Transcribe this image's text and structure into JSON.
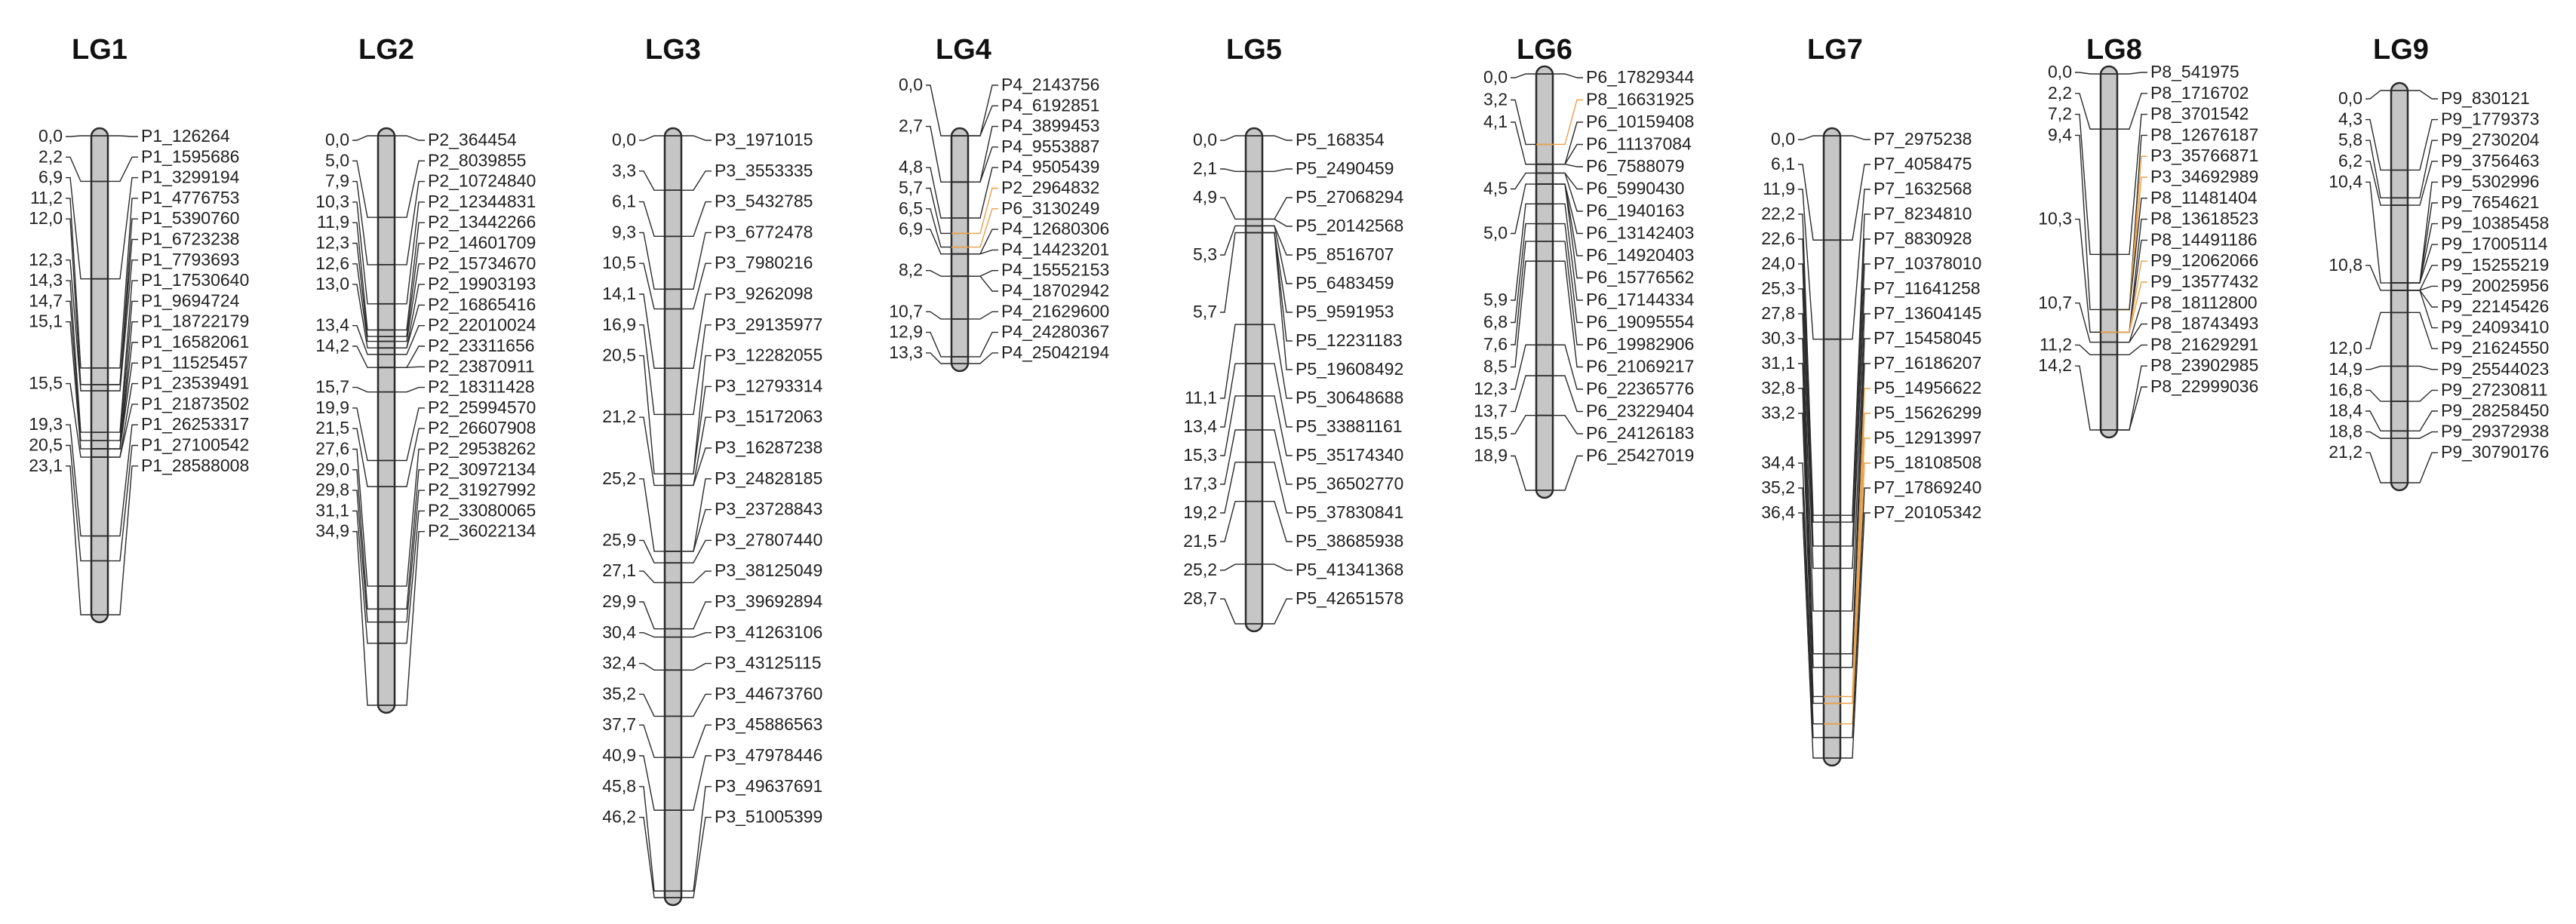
{
  "figure": {
    "colors": {
      "chromosome_fill": "#c6c6c6",
      "chromosome_stroke": "#2a2a2a",
      "text": "#222222",
      "highlight": "#e8a04a"
    }
  },
  "groups": [
    {
      "name": "LG1",
      "markers": [
        {
          "pos": "0,0",
          "label": "P1_126264"
        },
        {
          "pos": "2,2",
          "label": "P1_1595686"
        },
        {
          "pos": "6,9",
          "label": "P1_3299194"
        },
        {
          "pos": "11,2",
          "label": "P1_4776753"
        },
        {
          "pos": "12,0",
          "label": "P1_5390760"
        },
        {
          "pos": "",
          "label": "P1_6723238"
        },
        {
          "pos": "12,3",
          "label": "P1_7793693"
        },
        {
          "pos": "14,3",
          "label": "P1_17530640"
        },
        {
          "pos": "14,7",
          "label": "P1_9694724"
        },
        {
          "pos": "15,1",
          "label": "P1_18722179"
        },
        {
          "pos": "",
          "label": "P1_16582061"
        },
        {
          "pos": "",
          "label": "P1_11525457"
        },
        {
          "pos": "15,5",
          "label": "P1_23539491"
        },
        {
          "pos": "",
          "label": "P1_21873502"
        },
        {
          "pos": "19,3",
          "label": "P1_26253317"
        },
        {
          "pos": "20,5",
          "label": "P1_27100542"
        },
        {
          "pos": "23,1",
          "label": "P1_28588008"
        }
      ]
    },
    {
      "name": "LG2",
      "markers": [
        {
          "pos": "0,0",
          "label": "P2_364454"
        },
        {
          "pos": "5,0",
          "label": "P2_8039855"
        },
        {
          "pos": "7,9",
          "label": "P2_10724840"
        },
        {
          "pos": "10,3",
          "label": "P2_12344831"
        },
        {
          "pos": "11,9",
          "label": "P2_13442266"
        },
        {
          "pos": "12,3",
          "label": "P2_14601709"
        },
        {
          "pos": "12,6",
          "label": "P2_15734670"
        },
        {
          "pos": "13,0",
          "label": "P2_19903193"
        },
        {
          "pos": "",
          "label": "P2_16865416"
        },
        {
          "pos": "13,4",
          "label": "P2_22010024"
        },
        {
          "pos": "14,2",
          "label": "P2_23311656"
        },
        {
          "pos": "",
          "label": "P2_23870911"
        },
        {
          "pos": "15,7",
          "label": "P2_18311428"
        },
        {
          "pos": "19,9",
          "label": "P2_25994570"
        },
        {
          "pos": "21,5",
          "label": "P2_26607908"
        },
        {
          "pos": "27,6",
          "label": "P2_29538262"
        },
        {
          "pos": "29,0",
          "label": "P2_30972134"
        },
        {
          "pos": "29,8",
          "label": "P2_31927992"
        },
        {
          "pos": "31,1",
          "label": "P2_33080065"
        },
        {
          "pos": "34,9",
          "label": "P2_36022134"
        }
      ]
    },
    {
      "name": "LG3",
      "markers": [
        {
          "pos": "0,0",
          "label": "P3_1971015"
        },
        {
          "pos": "3,3",
          "label": "P3_3553335"
        },
        {
          "pos": "6,1",
          "label": "P3_5432785"
        },
        {
          "pos": "9,3",
          "label": "P3_6772478"
        },
        {
          "pos": "10,5",
          "label": "P3_7980216"
        },
        {
          "pos": "14,1",
          "label": "P3_9262098"
        },
        {
          "pos": "16,9",
          "label": "P3_29135977"
        },
        {
          "pos": "20,5",
          "label": "P3_12282055"
        },
        {
          "pos": "",
          "label": "P3_12793314"
        },
        {
          "pos": "21,2",
          "label": "P3_15172063"
        },
        {
          "pos": "",
          "label": "P3_16287238"
        },
        {
          "pos": "25,2",
          "label": "P3_24828185"
        },
        {
          "pos": "",
          "label": "P3_23728843"
        },
        {
          "pos": "25,9",
          "label": "P3_27807440"
        },
        {
          "pos": "27,1",
          "label": "P3_38125049"
        },
        {
          "pos": "29,9",
          "label": "P3_39692894"
        },
        {
          "pos": "30,4",
          "label": "P3_41263106"
        },
        {
          "pos": "32,4",
          "label": "P3_43125115"
        },
        {
          "pos": "35,2",
          "label": "P3_44673760"
        },
        {
          "pos": "37,7",
          "label": "P3_45886563"
        },
        {
          "pos": "40,9",
          "label": "P3_47978446"
        },
        {
          "pos": "45,8",
          "label": "P3_49637691"
        },
        {
          "pos": "46,2",
          "label": "P3_51005399"
        }
      ]
    },
    {
      "name": "LG4",
      "markers": [
        {
          "pos": "0,0",
          "label": "P4_2143756"
        },
        {
          "pos": "",
          "label": "P4_6192851"
        },
        {
          "pos": "2,7",
          "label": "P4_3899453"
        },
        {
          "pos": "",
          "label": "P4_9553887"
        },
        {
          "pos": "4,8",
          "label": "P4_9505439"
        },
        {
          "pos": "5,7",
          "label": "P2_2964832",
          "highlight": true
        },
        {
          "pos": "6,5",
          "label": "P6_3130249",
          "highlight": true
        },
        {
          "pos": "6,9",
          "label": "P4_12680306"
        },
        {
          "pos": "",
          "label": "P4_14423201"
        },
        {
          "pos": "8,2",
          "label": "P4_15552153"
        },
        {
          "pos": "",
          "label": "P4_18702942"
        },
        {
          "pos": "10,7",
          "label": "P4_21629600"
        },
        {
          "pos": "12,9",
          "label": "P4_24280367"
        },
        {
          "pos": "13,3",
          "label": "P4_25042194"
        }
      ]
    },
    {
      "name": "LG5",
      "markers": [
        {
          "pos": "0,0",
          "label": "P5_168354"
        },
        {
          "pos": "2,1",
          "label": "P5_2490459"
        },
        {
          "pos": "4,9",
          "label": "P5_27068294"
        },
        {
          "pos": "",
          "label": "P5_20142568"
        },
        {
          "pos": "5,3",
          "label": "P5_8516707"
        },
        {
          "pos": "",
          "label": "P5_6483459"
        },
        {
          "pos": "5,7",
          "label": "P5_9591953"
        },
        {
          "pos": "",
          "label": "P5_12231183"
        },
        {
          "pos": "",
          "label": "P5_19608492"
        },
        {
          "pos": "11,1",
          "label": "P5_30648688"
        },
        {
          "pos": "13,4",
          "label": "P5_33881161"
        },
        {
          "pos": "15,3",
          "label": "P5_35174340"
        },
        {
          "pos": "17,3",
          "label": "P5_36502770"
        },
        {
          "pos": "19,2",
          "label": "P5_37830841"
        },
        {
          "pos": "21,5",
          "label": "P5_38685938"
        },
        {
          "pos": "25,2",
          "label": "P5_41341368"
        },
        {
          "pos": "28,7",
          "label": "P5_42651578"
        }
      ]
    },
    {
      "name": "LG6",
      "markers": [
        {
          "pos": "0,0",
          "label": "P6_17829344"
        },
        {
          "pos": "3,2",
          "label": "P8_16631925",
          "highlight": true
        },
        {
          "pos": "4,1",
          "label": "P6_10159408"
        },
        {
          "pos": "",
          "label": "P6_11137084"
        },
        {
          "pos": "",
          "label": "P6_7588079"
        },
        {
          "pos": "4,5",
          "label": "P6_5990430"
        },
        {
          "pos": "",
          "label": "P6_1940163"
        },
        {
          "pos": "5,0",
          "label": "P6_13142403"
        },
        {
          "pos": "",
          "label": "P6_14920403"
        },
        {
          "pos": "",
          "label": "P6_15776562"
        },
        {
          "pos": "5,9",
          "label": "P6_17144334"
        },
        {
          "pos": "6,8",
          "label": "P6_19095554"
        },
        {
          "pos": "7,6",
          "label": "P6_19982906"
        },
        {
          "pos": "8,5",
          "label": "P6_21069217"
        },
        {
          "pos": "12,3",
          "label": "P6_22365776"
        },
        {
          "pos": "13,7",
          "label": "P6_23229404"
        },
        {
          "pos": "15,5",
          "label": "P6_24126183"
        },
        {
          "pos": "18,9",
          "label": "P6_25427019"
        }
      ]
    },
    {
      "name": "LG7",
      "markers": [
        {
          "pos": "0,0",
          "label": "P7_2975238"
        },
        {
          "pos": "6,1",
          "label": "P7_4058475"
        },
        {
          "pos": "11,9",
          "label": "P7_1632568"
        },
        {
          "pos": "22,2",
          "label": "P7_8234810"
        },
        {
          "pos": "22,6",
          "label": "P7_8830928"
        },
        {
          "pos": "24,0",
          "label": "P7_10378010"
        },
        {
          "pos": "25,3",
          "label": "P7_11641258"
        },
        {
          "pos": "27,8",
          "label": "P7_13604145"
        },
        {
          "pos": "30,3",
          "label": "P7_15458045"
        },
        {
          "pos": "31,1",
          "label": "P7_16186207"
        },
        {
          "pos": "32,8",
          "label": "P5_14956622",
          "highlight": true
        },
        {
          "pos": "33,2",
          "label": "P5_15626299",
          "highlight": true
        },
        {
          "pos": "",
          "label": "P5_12913997",
          "highlight": true
        },
        {
          "pos": "34,4",
          "label": "P5_18108508",
          "highlight": true
        },
        {
          "pos": "35,2",
          "label": "P7_17869240"
        },
        {
          "pos": "36,4",
          "label": "P7_20105342"
        }
      ]
    },
    {
      "name": "LG8",
      "markers": [
        {
          "pos": "0,0",
          "label": "P8_541975"
        },
        {
          "pos": "2,2",
          "label": "P8_1716702"
        },
        {
          "pos": "7,2",
          "label": "P8_3701542"
        },
        {
          "pos": "9,4",
          "label": "P8_12676187"
        },
        {
          "pos": "",
          "label": "P3_35766871",
          "highlight": true
        },
        {
          "pos": "",
          "label": "P3_34692989",
          "highlight": true
        },
        {
          "pos": "",
          "label": "P8_11481404"
        },
        {
          "pos": "10,3",
          "label": "P8_13618523"
        },
        {
          "pos": "",
          "label": "P8_14491186"
        },
        {
          "pos": "",
          "label": "P9_12062066",
          "highlight": true
        },
        {
          "pos": "",
          "label": "P9_13577432",
          "highlight": true
        },
        {
          "pos": "10,7",
          "label": "P8_18112800"
        },
        {
          "pos": "",
          "label": "P8_18743493"
        },
        {
          "pos": "11,2",
          "label": "P8_21629291"
        },
        {
          "pos": "14,2",
          "label": "P8_23902985"
        },
        {
          "pos": "",
          "label": "P8_22999036"
        }
      ]
    },
    {
      "name": "LG9",
      "markers": [
        {
          "pos": "0,0",
          "label": "P9_830121"
        },
        {
          "pos": "4,3",
          "label": "P9_1779373"
        },
        {
          "pos": "5,8",
          "label": "P9_2730204"
        },
        {
          "pos": "6,2",
          "label": "P9_3756463"
        },
        {
          "pos": "10,4",
          "label": "P9_5302996"
        },
        {
          "pos": "",
          "label": "P9_7654621"
        },
        {
          "pos": "",
          "label": "P9_10385458"
        },
        {
          "pos": "",
          "label": "P9_17005114"
        },
        {
          "pos": "10,8",
          "label": "P9_15255219"
        },
        {
          "pos": "",
          "label": "P9_20025956"
        },
        {
          "pos": "",
          "label": "P9_22145426"
        },
        {
          "pos": "",
          "label": "P9_24093410"
        },
        {
          "pos": "12,0",
          "label": "P9_21624550"
        },
        {
          "pos": "14,9",
          "label": "P9_25544023"
        },
        {
          "pos": "16,8",
          "label": "P9_27230811"
        },
        {
          "pos": "18,4",
          "label": "P9_28258450"
        },
        {
          "pos": "18,8",
          "label": "P9_29372938"
        },
        {
          "pos": "21,2",
          "label": "P9_30790176"
        }
      ]
    }
  ]
}
